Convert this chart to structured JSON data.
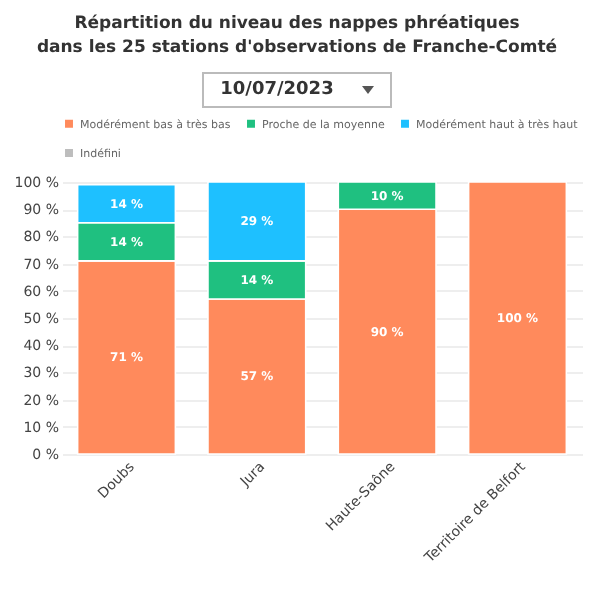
{
  "chart_data": {
    "type": "bar",
    "title": "Répartition du niveau des nappes phréatiques\ndans les 25 stations d'observations de Franche-Comté",
    "annotations": [
      "10/07/2023"
    ],
    "categories": [
      "Doubs",
      "Jura",
      "Haute-Saône",
      "Territoire de Belfort"
    ],
    "stacked": true,
    "series": [
      {
        "name": "Modérément bas à très bas",
        "color": "#ff8a5c",
        "values": [
          71,
          57,
          90,
          100
        ],
        "value_labels": [
          "71 %",
          "57 %",
          "90 %",
          "100 %"
        ]
      },
      {
        "name": "Proche de la moyenne",
        "color": "#1fc080",
        "values": [
          14,
          14,
          10,
          null
        ],
        "value_labels": [
          "14 %",
          "14 %",
          "10 %",
          null
        ]
      },
      {
        "name": "Modérément haut à très haut",
        "color": "#1ec0ff",
        "values": [
          14,
          29,
          null,
          null
        ],
        "value_labels": [
          "14 %",
          "29 %",
          null,
          null
        ]
      },
      {
        "name": "Indéfini",
        "color": "#bdbdbd",
        "values": [
          null,
          null,
          null,
          null
        ],
        "value_labels": [
          null,
          null,
          null,
          null
        ]
      }
    ],
    "ylim": [
      0,
      100
    ],
    "yticks": [
      {
        "value": 0,
        "label": "0 %"
      },
      {
        "value": 10,
        "label": "10 %"
      },
      {
        "value": 20,
        "label": "20 %"
      },
      {
        "value": 30,
        "label": "30 %"
      },
      {
        "value": 40,
        "label": "40 %"
      },
      {
        "value": 50,
        "label": "50 %"
      },
      {
        "value": 60,
        "label": "60 %"
      },
      {
        "value": 70,
        "label": "70 %"
      },
      {
        "value": 80,
        "label": "80 %"
      },
      {
        "value": 90,
        "label": "90 %"
      },
      {
        "value": 100,
        "label": "100 %"
      }
    ],
    "grid": "y",
    "legend": "top"
  }
}
